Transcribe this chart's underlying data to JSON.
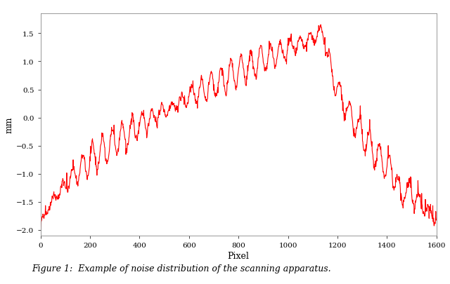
{
  "title": "",
  "xlabel": "Pixel",
  "ylabel": "mm",
  "xlim": [
    0,
    1600
  ],
  "ylim": [
    -2.1,
    1.85
  ],
  "xticks": [
    0,
    200,
    400,
    600,
    800,
    1000,
    1200,
    1400,
    1600
  ],
  "yticks": [
    -2.0,
    -1.5,
    -1.0,
    -0.5,
    0.0,
    0.5,
    1.0,
    1.5
  ],
  "line_color": "#FF0000",
  "line_width": 0.8,
  "figure_caption": "Figure 1:  Example of noise distribution of the scanning apparatus.",
  "background_color": "#ffffff",
  "seed": 42,
  "n_points": 1600
}
